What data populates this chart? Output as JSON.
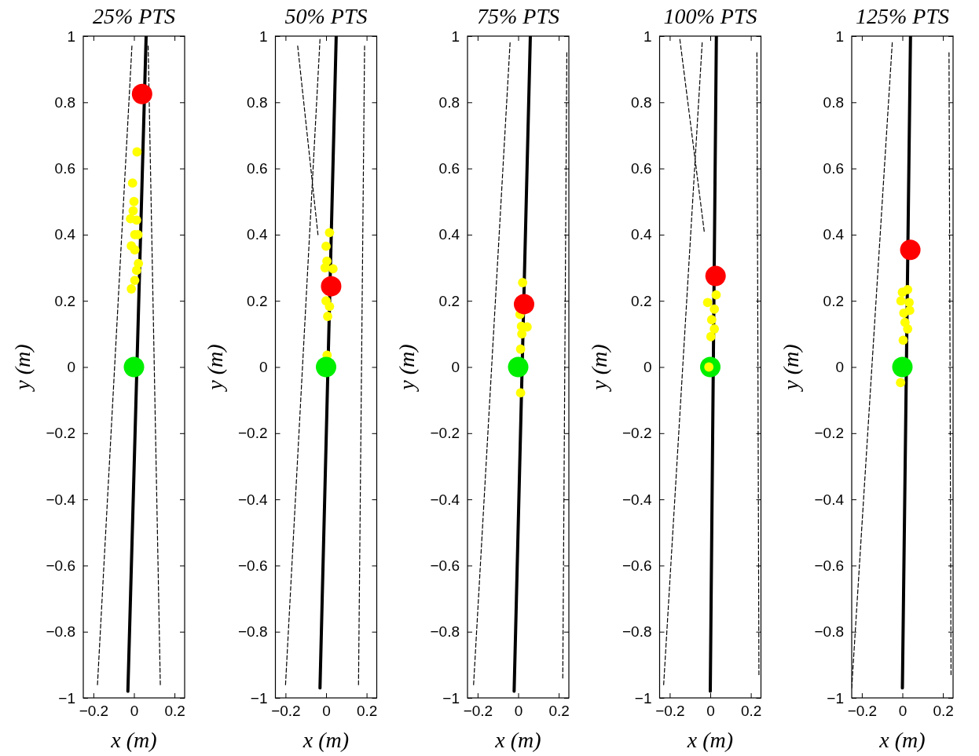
{
  "chart_data": [
    {
      "type": "scatter",
      "title": "25% PTS",
      "xlabel": "x (m)",
      "ylabel": "y (m)",
      "xlim": [
        -0.25,
        0.25
      ],
      "ylim": [
        -1,
        1
      ],
      "xticks": [
        -0.2,
        0,
        0.2
      ],
      "yticks": [
        -1,
        -0.8,
        -0.6,
        -0.4,
        -0.2,
        0,
        0.2,
        0.4,
        0.6,
        0.8,
        1
      ],
      "series": [
        {
          "type": "line",
          "line_style": "dashed",
          "color": "#000000",
          "x": [
            -0.18,
            -0.01
          ],
          "values": [
            -0.96,
            0.97
          ]
        },
        {
          "type": "line",
          "line_style": "dashed",
          "color": "#000000",
          "x": [
            0.13,
            0.07
          ],
          "values": [
            -0.96,
            0.97
          ]
        },
        {
          "type": "line",
          "line_style": "solid",
          "color": "#000000",
          "x": [
            -0.03,
            0.06
          ],
          "values": [
            -0.98,
            1
          ]
        },
        {
          "type": "scatter",
          "marker": "circle",
          "color": "#ffff00",
          "x": [
            0.015,
            -0.007,
            0,
            -0.004,
            -0.017,
            0.013,
            0.004,
            0.02,
            -0.013,
            0.004,
            0.022,
            0.013,
            0.004,
            -0.013
          ],
          "values": [
            0.65,
            0.556,
            0.5,
            0.472,
            0.448,
            0.444,
            0.4,
            0.4,
            0.366,
            0.354,
            0.313,
            0.292,
            0.262,
            0.236
          ]
        },
        {
          "type": "bubble",
          "color": "#00ee00",
          "x": [
            0
          ],
          "values": [
            0
          ],
          "sizes": [
            1
          ]
        },
        {
          "type": "bubble",
          "color": "#ff0000",
          "x": [
            0.04
          ],
          "values": [
            0.825
          ],
          "sizes": [
            1
          ]
        }
      ]
    },
    {
      "type": "scatter",
      "title": "50% PTS",
      "xlabel": "x (m)",
      "ylabel": "y (m)",
      "xlim": [
        -0.25,
        0.25
      ],
      "ylim": [
        -1,
        1
      ],
      "xticks": [
        -0.2,
        0,
        0.2
      ],
      "yticks": [
        -1,
        -0.8,
        -0.6,
        -0.4,
        -0.2,
        0,
        0.2,
        0.4,
        0.6,
        0.8,
        1
      ],
      "series": [
        {
          "type": "line",
          "line_style": "dashed",
          "color": "#000000",
          "x": [
            -0.2,
            -0.03
          ],
          "values": [
            -0.96,
            0.99
          ]
        },
        {
          "type": "line",
          "line_style": "dashed",
          "color": "#000000",
          "x": [
            0.16,
            0.19
          ],
          "values": [
            -0.96,
            0.97
          ]
        },
        {
          "type": "line",
          "line_style": "dashed",
          "color": "#000000",
          "x": [
            -0.14,
            -0.04
          ],
          "values": [
            0.97,
            0.4
          ]
        },
        {
          "type": "line",
          "line_style": "solid",
          "color": "#000000",
          "x": [
            -0.03,
            0.05
          ],
          "values": [
            -0.97,
            1
          ]
        },
        {
          "type": "scatter",
          "marker": "circle",
          "color": "#ffff00",
          "x": [
            0.017,
            0,
            0.004,
            -0.005,
            0.034,
            0,
            0.017,
            0.008,
            0.005
          ],
          "values": [
            0.406,
            0.365,
            0.32,
            0.3,
            0.297,
            0.2,
            0.183,
            0.153,
            0.036
          ]
        },
        {
          "type": "bubble",
          "color": "#00ee00",
          "x": [
            0
          ],
          "values": [
            0
          ],
          "sizes": [
            1
          ]
        },
        {
          "type": "bubble",
          "color": "#ff0000",
          "x": [
            0.025
          ],
          "values": [
            0.244
          ],
          "sizes": [
            1
          ]
        }
      ]
    },
    {
      "type": "scatter",
      "title": "75% PTS",
      "xlabel": "x (m)",
      "ylabel": "y (m)",
      "xlim": [
        -0.25,
        0.25
      ],
      "ylim": [
        -1,
        1
      ],
      "xticks": [
        -0.2,
        0,
        0.2
      ],
      "yticks": [
        -1,
        -0.8,
        -0.6,
        -0.4,
        -0.2,
        0,
        0.2,
        0.4,
        0.6,
        0.8,
        1
      ],
      "series": [
        {
          "type": "line",
          "line_style": "dashed",
          "color": "#000000",
          "x": [
            -0.22,
            -0.04
          ],
          "values": [
            -0.96,
            0.98
          ]
        },
        {
          "type": "line",
          "line_style": "dashed",
          "color": "#000000",
          "x": [
            0.22,
            0.24
          ],
          "values": [
            -0.94,
            0.95
          ]
        },
        {
          "type": "line",
          "line_style": "solid",
          "color": "#000000",
          "x": [
            -0.02,
            0.06
          ],
          "values": [
            -0.98,
            1
          ]
        },
        {
          "type": "scatter",
          "marker": "circle",
          "color": "#ffff00",
          "x": [
            0.022,
            0.009,
            0.016,
            0.044,
            0.018,
            0.012,
            0.012
          ],
          "values": [
            0.255,
            0.159,
            0.123,
            0.121,
            0.1,
            0.054,
            -0.078
          ]
        },
        {
          "type": "bubble",
          "color": "#00ee00",
          "x": [
            0
          ],
          "values": [
            0
          ],
          "sizes": [
            1
          ]
        },
        {
          "type": "bubble",
          "color": "#ff0000",
          "x": [
            0.029
          ],
          "values": [
            0.19
          ],
          "sizes": [
            1
          ]
        }
      ]
    },
    {
      "type": "scatter",
      "title": "100% PTS",
      "xlabel": "x (m)",
      "ylabel": "y (m)",
      "xlim": [
        -0.25,
        0.25
      ],
      "ylim": [
        -1,
        1
      ],
      "xticks": [
        -0.2,
        0,
        0.2
      ],
      "yticks": [
        -1,
        -0.8,
        -0.6,
        -0.4,
        -0.2,
        0,
        0.2,
        0.4,
        0.6,
        0.8,
        1
      ],
      "series": [
        {
          "type": "line",
          "line_style": "dashed",
          "color": "#000000",
          "x": [
            -0.23,
            -0.04
          ],
          "values": [
            -0.96,
            0.98
          ]
        },
        {
          "type": "line",
          "line_style": "dashed",
          "color": "#000000",
          "x": [
            0.24,
            0.23
          ],
          "values": [
            -0.93,
            0.95
          ]
        },
        {
          "type": "line",
          "line_style": "dashed",
          "color": "#000000",
          "x": [
            -0.15,
            -0.03
          ],
          "values": [
            0.99,
            0.41
          ]
        },
        {
          "type": "line",
          "line_style": "solid",
          "color": "#000000",
          "x": [
            0,
            0.03
          ],
          "values": [
            -0.98,
            1
          ]
        },
        {
          "type": "bubble",
          "color": "#00ee00",
          "x": [
            0
          ],
          "values": [
            0
          ],
          "sizes": [
            1
          ]
        },
        {
          "type": "scatter",
          "marker": "circle",
          "color": "#ffff00",
          "x": [
            0.029,
            -0.013,
            0.02,
            0.007,
            0.02,
            0.003,
            -0.007
          ],
          "values": [
            0.218,
            0.195,
            0.175,
            0.143,
            0.115,
            0.092,
            0
          ]
        },
        {
          "type": "bubble",
          "color": "#ff0000",
          "x": [
            0.026
          ],
          "values": [
            0.275
          ],
          "sizes": [
            1
          ]
        }
      ]
    },
    {
      "type": "scatter",
      "title": "125% PTS",
      "xlabel": "x (m)",
      "ylabel": "y (m)",
      "xlim": [
        -0.25,
        0.25
      ],
      "ylim": [
        -1,
        1
      ],
      "xticks": [
        -0.2,
        0,
        0.2
      ],
      "yticks": [
        -1,
        -0.8,
        -0.6,
        -0.4,
        -0.2,
        0,
        0.2,
        0.4,
        0.6,
        0.8,
        1
      ],
      "series": [
        {
          "type": "line",
          "line_style": "dashed",
          "color": "#000000",
          "x": [
            -0.25,
            -0.05
          ],
          "values": [
            -0.97,
            0.98
          ]
        },
        {
          "type": "line",
          "line_style": "dashed",
          "color": "#000000",
          "x": [
            0.24,
            0.23
          ],
          "values": [
            -0.93,
            0.95
          ]
        },
        {
          "type": "line",
          "line_style": "solid",
          "color": "#000000",
          "x": [
            0,
            0.04
          ],
          "values": [
            -0.97,
            1
          ]
        },
        {
          "type": "scatter",
          "marker": "circle",
          "color": "#ffff00",
          "x": [
            0.026,
            0,
            -0.007,
            0.033,
            0.007,
            0.036,
            0.013,
            0.026,
            0.004,
            -0.009
          ],
          "values": [
            0.234,
            0.226,
            0.2,
            0.195,
            0.163,
            0.171,
            0.135,
            0.115,
            0.081,
            -0.047
          ]
        },
        {
          "type": "bubble",
          "color": "#00ee00",
          "x": [
            0
          ],
          "values": [
            0
          ],
          "sizes": [
            1
          ]
        },
        {
          "type": "bubble",
          "color": "#ff0000",
          "x": [
            0.039
          ],
          "values": [
            0.354
          ],
          "sizes": [
            1
          ]
        }
      ]
    }
  ]
}
